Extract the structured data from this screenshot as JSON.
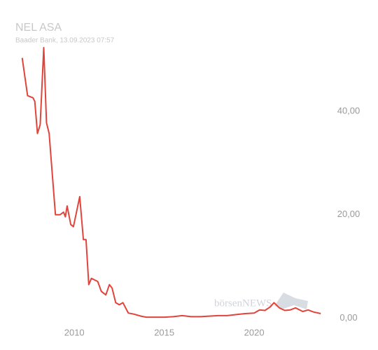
{
  "chart_data": {
    "type": "line",
    "title": "NEL ASA",
    "subtitle": "Baader Bank, 13.09.2023 07:57",
    "watermark": "börsenNEWS",
    "series": [
      {
        "name": "NEL ASA",
        "color": "#e0443a",
        "x": [
          2007.1,
          2007.4,
          2007.7,
          2007.8,
          2007.95,
          2008.1,
          2008.3,
          2008.45,
          2008.6,
          2008.95,
          2009.2,
          2009.4,
          2009.5,
          2009.6,
          2009.8,
          2009.95,
          2010.3,
          2010.5,
          2010.65,
          2010.8,
          2010.95,
          2011.3,
          2011.5,
          2011.75,
          2011.95,
          2012.1,
          2012.3,
          2012.5,
          2012.7,
          2013.0,
          2013.3,
          2013.7,
          2014.0,
          2014.5,
          2015.0,
          2015.5,
          2016.0,
          2016.5,
          2017.0,
          2017.5,
          2018.0,
          2018.5,
          2019.0,
          2019.5,
          2020.0,
          2020.3,
          2020.6,
          2020.9,
          2021.1,
          2021.4,
          2021.7,
          2022.0,
          2022.3,
          2022.7,
          2023.0,
          2023.3,
          2023.7
        ],
        "values": [
          50.3,
          43.0,
          42.6,
          41.9,
          35.7,
          37.4,
          52.3,
          37.8,
          35.7,
          20.0,
          20.0,
          20.5,
          19.6,
          21.7,
          18.1,
          17.7,
          23.5,
          15.2,
          15.2,
          6.5,
          7.7,
          7.1,
          5.2,
          4.5,
          6.5,
          5.8,
          3.0,
          2.6,
          3.0,
          1.0,
          0.8,
          0.4,
          0.2,
          0.2,
          0.2,
          0.3,
          0.5,
          0.3,
          0.3,
          0.4,
          0.5,
          0.5,
          0.7,
          0.9,
          1.0,
          1.6,
          1.5,
          2.2,
          3.0,
          2.0,
          1.5,
          1.6,
          2.0,
          1.3,
          1.6,
          1.2,
          0.9
        ]
      }
    ],
    "xlim": [
      2006.8,
      2024.2
    ],
    "xticks": [
      2010,
      2015,
      2020
    ],
    "ylim": [
      -1,
      55
    ],
    "yticks": [
      {
        "value": 0,
        "label": "0,00"
      },
      {
        "value": 20,
        "label": "20,00"
      },
      {
        "value": 40,
        "label": "40,00"
      }
    ],
    "grid": false
  }
}
